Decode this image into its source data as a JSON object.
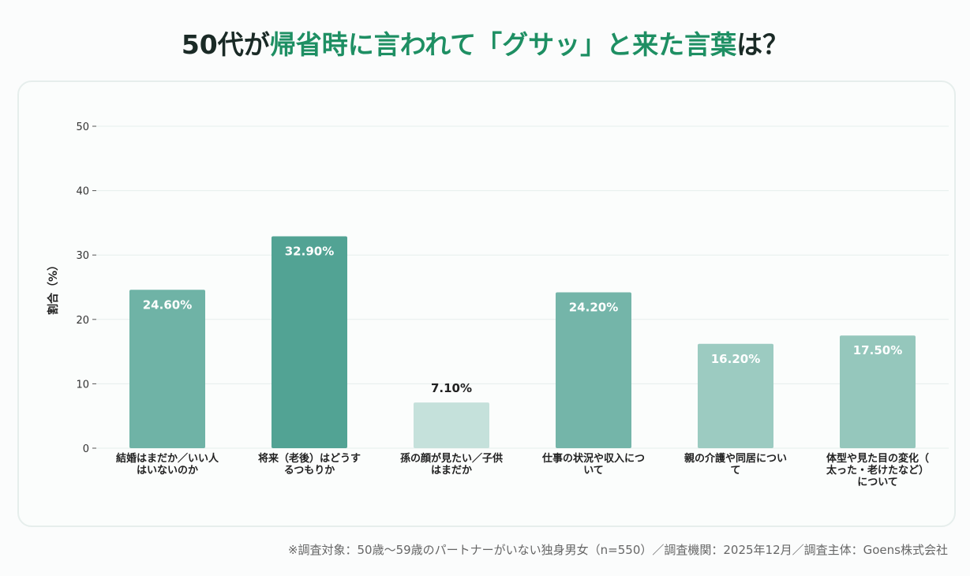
{
  "title": {
    "part1": "50代が",
    "highlight": "帰省時に言われて「グサッ」と来た言葉",
    "part2": "は？"
  },
  "chart_data": {
    "type": "bar",
    "ylabel": "割合（%）",
    "ylim": [
      0,
      50
    ],
    "yticks": [
      0,
      10,
      20,
      30,
      40,
      50
    ],
    "grid": true,
    "categories": [
      "結婚はまだか／いい人\nはいないのか",
      "将来（老後）はどうす\nるつもりか",
      "孫の顔が見たい／子供\nはまだか",
      "仕事の状況や収入につ\nいて",
      "親の介護や同居につい\nて",
      "体型や見た目の変化（\n太った・老けたなど）\nについて"
    ],
    "values": [
      24.6,
      32.9,
      7.1,
      24.2,
      16.2,
      17.5
    ],
    "data_labels": [
      "24.60%",
      "32.90%",
      "7.10%",
      "24.20%",
      "16.20%",
      "17.50%"
    ],
    "colors": [
      "#6fb3a6",
      "#52a394",
      "#c5e1db",
      "#74b5a9",
      "#9ccbc1",
      "#95c7bc"
    ]
  },
  "footer": "※調査対象：50歳〜59歳のパートナーがいない独身男女（n=550）／調査機関：2025年12月／調査主体：Goens株式会社"
}
